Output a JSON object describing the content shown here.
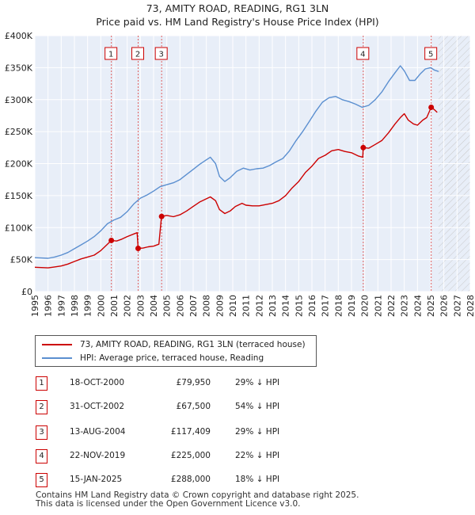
{
  "title": {
    "line1": "73, AMITY ROAD, READING, RG1 3LN",
    "line2": "Price paid vs. HM Land Registry's House Price Index (HPI)"
  },
  "chart_data": {
    "type": "line",
    "x_range": [
      1995,
      2028
    ],
    "ylim": [
      0,
      400000
    ],
    "y_ticks": [
      0,
      50000,
      100000,
      150000,
      200000,
      250000,
      300000,
      350000,
      400000
    ],
    "y_tick_labels": [
      "£0",
      "£50K",
      "£100K",
      "£150K",
      "£200K",
      "£250K",
      "£300K",
      "£350K",
      "£400K"
    ],
    "x_ticks": [
      1995,
      1996,
      1997,
      1998,
      1999,
      2000,
      2001,
      2002,
      2003,
      2004,
      2005,
      2006,
      2007,
      2008,
      2009,
      2010,
      2011,
      2012,
      2013,
      2014,
      2015,
      2016,
      2017,
      2018,
      2019,
      2020,
      2021,
      2022,
      2023,
      2024,
      2025,
      2026,
      2027,
      2028
    ],
    "x_tick_labels": [
      "1995",
      "1996",
      "1997",
      "1998",
      "1999",
      "2000",
      "2001",
      "2002",
      "2003",
      "2004",
      "2005",
      "2006",
      "2007",
      "2008",
      "2009",
      "2010",
      "2011",
      "2012",
      "2013",
      "2014",
      "2015",
      "2016",
      "2017",
      "2018",
      "2019",
      "2020",
      "2021",
      "2022",
      "2023",
      "2024",
      "2025",
      "2026",
      "2027",
      "2028"
    ],
    "grid": true,
    "forecast_from": 2025.6,
    "series": [
      {
        "name": "73, AMITY ROAD, READING, RG1 3LN (terraced house)",
        "color": "#cc0000",
        "points": [
          [
            1995.0,
            38000
          ],
          [
            1995.5,
            37500
          ],
          [
            1996.0,
            37000
          ],
          [
            1996.5,
            38500
          ],
          [
            1997.0,
            40000
          ],
          [
            1997.5,
            43000
          ],
          [
            1998.0,
            47000
          ],
          [
            1998.5,
            51000
          ],
          [
            1999.0,
            54000
          ],
          [
            1999.5,
            57000
          ],
          [
            2000.0,
            64000
          ],
          [
            2000.5,
            74000
          ],
          [
            2000.8,
            79950
          ],
          [
            2001.2,
            79000
          ],
          [
            2001.6,
            82000
          ],
          [
            2002.0,
            86000
          ],
          [
            2002.5,
            90000
          ],
          [
            2002.75,
            92000
          ],
          [
            2002.83,
            67500
          ],
          [
            2003.2,
            68000
          ],
          [
            2003.6,
            70000
          ],
          [
            2004.0,
            71000
          ],
          [
            2004.4,
            74000
          ],
          [
            2004.6,
            117409
          ],
          [
            2005.0,
            119000
          ],
          [
            2005.5,
            117000
          ],
          [
            2006.0,
            120000
          ],
          [
            2006.5,
            126000
          ],
          [
            2007.0,
            133000
          ],
          [
            2007.5,
            140000
          ],
          [
            2008.0,
            145000
          ],
          [
            2008.3,
            148000
          ],
          [
            2008.7,
            142000
          ],
          [
            2009.0,
            128000
          ],
          [
            2009.4,
            122000
          ],
          [
            2009.8,
            126000
          ],
          [
            2010.2,
            133000
          ],
          [
            2010.7,
            138000
          ],
          [
            2011.0,
            135000
          ],
          [
            2011.5,
            134000
          ],
          [
            2012.0,
            134000
          ],
          [
            2012.5,
            136000
          ],
          [
            2013.0,
            138000
          ],
          [
            2013.5,
            142000
          ],
          [
            2014.0,
            150000
          ],
          [
            2014.5,
            162000
          ],
          [
            2015.0,
            172000
          ],
          [
            2015.5,
            186000
          ],
          [
            2016.0,
            196000
          ],
          [
            2016.5,
            208000
          ],
          [
            2017.0,
            213000
          ],
          [
            2017.5,
            220000
          ],
          [
            2018.0,
            222000
          ],
          [
            2018.5,
            219000
          ],
          [
            2019.0,
            217000
          ],
          [
            2019.5,
            212000
          ],
          [
            2019.85,
            210000
          ],
          [
            2019.89,
            225000
          ],
          [
            2020.3,
            224000
          ],
          [
            2020.8,
            230000
          ],
          [
            2021.3,
            236000
          ],
          [
            2021.8,
            248000
          ],
          [
            2022.3,
            262000
          ],
          [
            2022.7,
            272000
          ],
          [
            2023.0,
            278000
          ],
          [
            2023.3,
            268000
          ],
          [
            2023.7,
            262000
          ],
          [
            2024.0,
            260000
          ],
          [
            2024.4,
            268000
          ],
          [
            2024.7,
            272000
          ],
          [
            2025.04,
            288000
          ],
          [
            2025.3,
            284000
          ],
          [
            2025.5,
            280000
          ]
        ]
      },
      {
        "name": "HPI: Average price, terraced house, Reading",
        "color": "#5b8fd0",
        "points": [
          [
            1995.0,
            53000
          ],
          [
            1995.5,
            52500
          ],
          [
            1996.0,
            52000
          ],
          [
            1996.5,
            54000
          ],
          [
            1997.0,
            57000
          ],
          [
            1997.5,
            61000
          ],
          [
            1998.0,
            67000
          ],
          [
            1998.5,
            73000
          ],
          [
            1999.0,
            79000
          ],
          [
            1999.5,
            86000
          ],
          [
            2000.0,
            95000
          ],
          [
            2000.5,
            106000
          ],
          [
            2001.0,
            112000
          ],
          [
            2001.5,
            116000
          ],
          [
            2002.0,
            125000
          ],
          [
            2002.5,
            137000
          ],
          [
            2003.0,
            146000
          ],
          [
            2003.5,
            151000
          ],
          [
            2004.0,
            157000
          ],
          [
            2004.5,
            164000
          ],
          [
            2005.0,
            167000
          ],
          [
            2005.5,
            170000
          ],
          [
            2006.0,
            175000
          ],
          [
            2006.5,
            183000
          ],
          [
            2007.0,
            191000
          ],
          [
            2007.5,
            199000
          ],
          [
            2008.0,
            206000
          ],
          [
            2008.3,
            210000
          ],
          [
            2008.7,
            200000
          ],
          [
            2009.0,
            180000
          ],
          [
            2009.4,
            172000
          ],
          [
            2009.8,
            178000
          ],
          [
            2010.3,
            188000
          ],
          [
            2010.8,
            193000
          ],
          [
            2011.3,
            190000
          ],
          [
            2011.8,
            192000
          ],
          [
            2012.3,
            193000
          ],
          [
            2012.8,
            197000
          ],
          [
            2013.3,
            203000
          ],
          [
            2013.8,
            208000
          ],
          [
            2014.3,
            220000
          ],
          [
            2014.8,
            236000
          ],
          [
            2015.3,
            250000
          ],
          [
            2015.8,
            266000
          ],
          [
            2016.3,
            282000
          ],
          [
            2016.8,
            296000
          ],
          [
            2017.3,
            303000
          ],
          [
            2017.8,
            305000
          ],
          [
            2018.3,
            300000
          ],
          [
            2018.8,
            297000
          ],
          [
            2019.3,
            293000
          ],
          [
            2019.8,
            288000
          ],
          [
            2020.3,
            291000
          ],
          [
            2020.8,
            300000
          ],
          [
            2021.3,
            312000
          ],
          [
            2021.8,
            328000
          ],
          [
            2022.3,
            342000
          ],
          [
            2022.7,
            353000
          ],
          [
            2023.0,
            345000
          ],
          [
            2023.4,
            330000
          ],
          [
            2023.8,
            330000
          ],
          [
            2024.2,
            340000
          ],
          [
            2024.6,
            348000
          ],
          [
            2025.0,
            350000
          ],
          [
            2025.3,
            346000
          ],
          [
            2025.6,
            344000
          ]
        ]
      }
    ],
    "sales": [
      {
        "n": "1",
        "x": 2000.8,
        "price": 79950
      },
      {
        "n": "2",
        "x": 2002.83,
        "price": 67500
      },
      {
        "n": "3",
        "x": 2004.61,
        "price": 117409
      },
      {
        "n": "4",
        "x": 2019.89,
        "price": 225000
      },
      {
        "n": "5",
        "x": 2025.04,
        "price": 288000
      }
    ]
  },
  "legend": {
    "property": "73, AMITY ROAD, READING, RG1 3LN (terraced house)",
    "hpi": "HPI: Average price, terraced house, Reading",
    "property_color": "#cc0000",
    "hpi_color": "#5b8fd0"
  },
  "sales_table": [
    {
      "n": "1",
      "date": "18-OCT-2000",
      "price": "£79,950",
      "hpi": "29% ↓ HPI"
    },
    {
      "n": "2",
      "date": "31-OCT-2002",
      "price": "£67,500",
      "hpi": "54% ↓ HPI"
    },
    {
      "n": "3",
      "date": "13-AUG-2004",
      "price": "£117,409",
      "hpi": "29% ↓ HPI"
    },
    {
      "n": "4",
      "date": "22-NOV-2019",
      "price": "£225,000",
      "hpi": "22% ↓ HPI"
    },
    {
      "n": "5",
      "date": "15-JAN-2025",
      "price": "£288,000",
      "hpi": "18% ↓ HPI"
    }
  ],
  "footer": {
    "line1": "Contains HM Land Registry data © Crown copyright and database right 2025.",
    "line2": "This data is licensed under the Open Government Licence v3.0."
  }
}
